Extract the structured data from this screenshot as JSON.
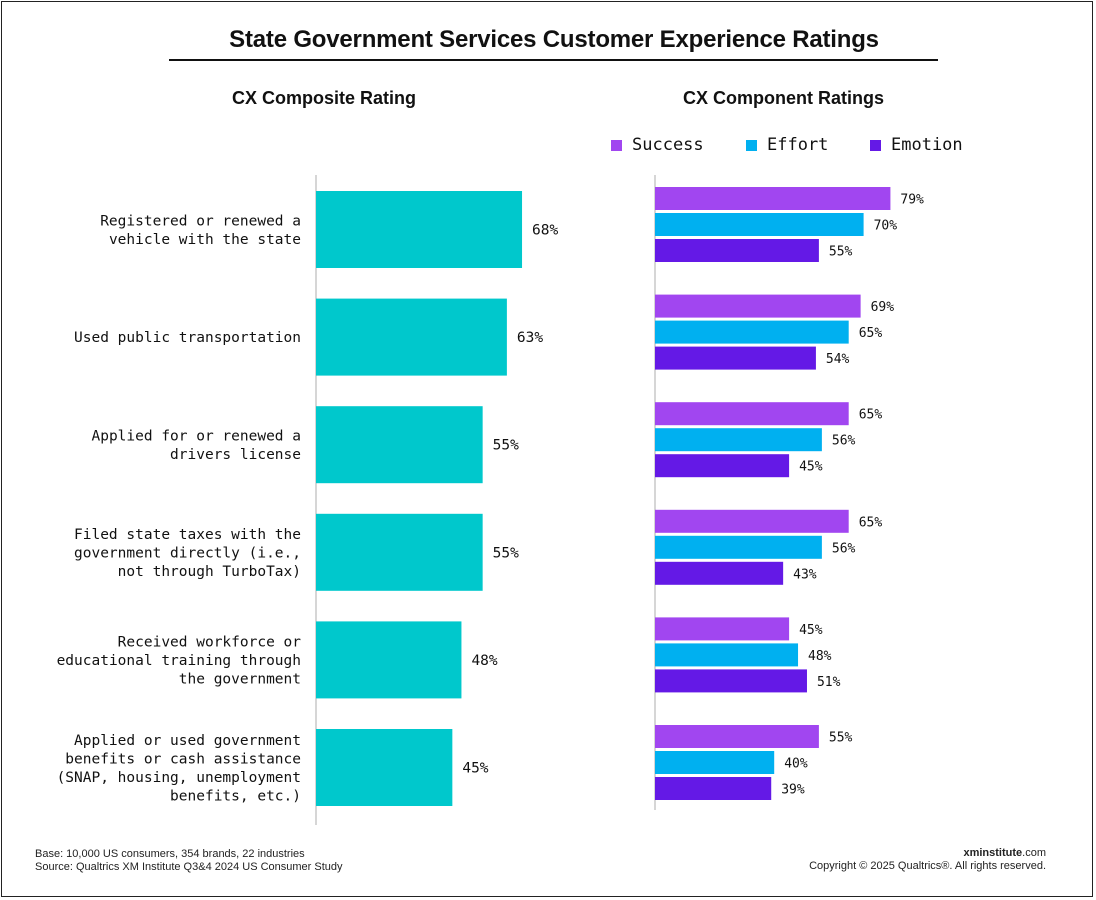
{
  "title": "State Government Services Customer Experience Ratings",
  "left_subtitle": "CX Composite Rating",
  "right_subtitle": "CX Component Ratings",
  "legend": [
    {
      "label": "Success",
      "color": "#a146f0"
    },
    {
      "label": "Effort",
      "color": "#00b0f0"
    },
    {
      "label": "Emotion",
      "color": "#6419e6"
    }
  ],
  "colors": {
    "composite": "#00c8cc",
    "axis": "#c8c8c8",
    "text": "#111111"
  },
  "chart_data": [
    {
      "type": "bar",
      "orientation": "horizontal",
      "title": "CX Composite Rating",
      "categories": [
        [
          "Registered or renewed a",
          "vehicle with the state"
        ],
        [
          "Used public transportation"
        ],
        [
          "Applied for or renewed a",
          "drivers license"
        ],
        [
          "Filed state taxes with the",
          "government directly (i.e.,",
          "not through TurboTax)"
        ],
        [
          "Received workforce or",
          "educational training through",
          "the government"
        ],
        [
          "Applied or used government",
          "benefits or cash assistance",
          "(SNAP,  housing, unemployment",
          "benefits,  etc.)"
        ]
      ],
      "values": [
        68,
        63,
        55,
        55,
        48,
        45
      ],
      "labels": [
        "68%",
        "63%",
        "55%",
        "55%",
        "48%",
        "45%"
      ],
      "unit": "%"
    },
    {
      "type": "bar",
      "orientation": "horizontal",
      "title": "CX Component Ratings",
      "series": [
        {
          "name": "Success",
          "values": [
            79,
            69,
            65,
            65,
            45,
            55
          ],
          "labels": [
            "79%",
            "69%",
            "65%",
            "65%",
            "45%",
            "55%"
          ]
        },
        {
          "name": "Effort",
          "values": [
            70,
            65,
            56,
            56,
            48,
            40
          ],
          "labels": [
            "70%",
            "65%",
            "56%",
            "56%",
            "48%",
            "40%"
          ]
        },
        {
          "name": "Emotion",
          "values": [
            55,
            54,
            45,
            43,
            51,
            39
          ],
          "labels": [
            "55%",
            "54%",
            "45%",
            "43%",
            "51%",
            "39%"
          ]
        }
      ],
      "unit": "%"
    }
  ],
  "footer": {
    "base": "Base: 10,000 US consumers, 354 brands, 22 industries",
    "source": "Source: Qualtrics XM Institute Q3&4 2024 US Consumer Study",
    "brand_bold": "xminstitute",
    "brand_suffix": ".com",
    "copyright": "Copyright © 2025 Qualtrics®. All rights reserved."
  }
}
